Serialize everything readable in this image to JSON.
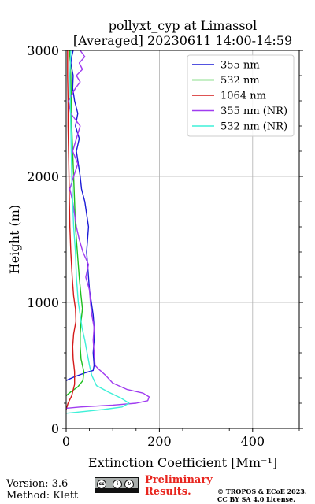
{
  "chart_data": {
    "type": "line",
    "title": "pollyxt_cyp at Limassol",
    "subtitle": "[Averaged] 20230611 14:00-14:59",
    "xlabel": "Extinction Coefficient [Mm⁻¹]",
    "ylabel": "Height (m)",
    "xlim": [
      0,
      500
    ],
    "ylim": [
      0,
      3000
    ],
    "x_ticks": [
      "0",
      "200",
      "400"
    ],
    "y_ticks": [
      "0",
      "1000",
      "2000",
      "3000"
    ],
    "grid": true,
    "legend_position": "top-right",
    "series": [
      {
        "name": "355 nm",
        "color": "#1a1ad6",
        "x": [
          0,
          18,
          40,
          58,
          60,
          58,
          60,
          60,
          58,
          54,
          50,
          48,
          44,
          48,
          40,
          33,
          30,
          26,
          22,
          28,
          20,
          25,
          18,
          14,
          15,
          10,
          12,
          15
        ],
        "y": [
          380,
          410,
          440,
          460,
          500,
          600,
          700,
          800,
          900,
          1000,
          1100,
          1200,
          1400,
          1600,
          1800,
          1900,
          2000,
          2100,
          2200,
          2300,
          2400,
          2500,
          2600,
          2700,
          2800,
          2900,
          2950,
          3000
        ]
      },
      {
        "name": "532 nm",
        "color": "#1fbf1f",
        "x": [
          0,
          10,
          25,
          36,
          38,
          32,
          30,
          30,
          32,
          35,
          32,
          28,
          24,
          20,
          18,
          16,
          14,
          12,
          11,
          10,
          9,
          8,
          8
        ],
        "y": [
          260,
          290,
          330,
          380,
          450,
          550,
          650,
          750,
          850,
          950,
          1050,
          1200,
          1400,
          1600,
          1800,
          2000,
          2200,
          2400,
          2600,
          2800,
          2900,
          2950,
          3000
        ]
      },
      {
        "name": "1064 nm",
        "color": "#d41a1a",
        "x": [
          0,
          4,
          12,
          18,
          18,
          15,
          14,
          16,
          21,
          20,
          16,
          13,
          10,
          8,
          7,
          6,
          5,
          4,
          4,
          3,
          3
        ],
        "y": [
          150,
          200,
          260,
          350,
          450,
          550,
          650,
          750,
          850,
          950,
          1050,
          1200,
          1400,
          1600,
          1800,
          2000,
          2200,
          2400,
          2600,
          2800,
          3000
        ]
      },
      {
        "name": "355 nm (NR)",
        "color": "#a03cf0",
        "x": [
          0,
          30,
          100,
          150,
          175,
          178,
          165,
          130,
          100,
          85,
          70,
          62,
          60,
          58,
          60,
          55,
          52,
          50,
          42,
          48,
          36,
          28,
          22,
          18,
          14,
          8,
          16,
          25,
          14,
          22,
          30,
          10,
          5,
          20,
          30,
          22,
          35,
          28,
          40,
          30
        ],
        "y": [
          160,
          170,
          185,
          200,
          220,
          250,
          280,
          310,
          360,
          420,
          470,
          500,
          600,
          700,
          800,
          900,
          1000,
          1100,
          1200,
          1300,
          1400,
          1500,
          1600,
          1700,
          1800,
          1900,
          2000,
          2100,
          2200,
          2300,
          2400,
          2500,
          2600,
          2700,
          2750,
          2800,
          2850,
          2900,
          2950,
          3000
        ]
      },
      {
        "name": "532 nm (NR)",
        "color": "#3ef0d8",
        "x": [
          0,
          40,
          80,
          120,
          135,
          118,
          90,
          65,
          55,
          50,
          45,
          40,
          34,
          30,
          26,
          22,
          20,
          16,
          14,
          12,
          10,
          8,
          9,
          10
        ],
        "y": [
          120,
          135,
          150,
          170,
          200,
          240,
          290,
          340,
          420,
          500,
          600,
          700,
          800,
          900,
          1000,
          1200,
          1400,
          1600,
          1800,
          2000,
          2400,
          2800,
          2900,
          3000
        ]
      }
    ]
  },
  "footer": {
    "version": "Version: 3.6",
    "method": "Method: Klett",
    "preliminary_1": "Preliminary",
    "preliminary_2": "Results.",
    "license_1": "© TROPOS & ECoE 2023.",
    "license_2": "CC BY SA 4.0 License.",
    "badge_label": "BY SA",
    "badge_cc": "cc"
  }
}
